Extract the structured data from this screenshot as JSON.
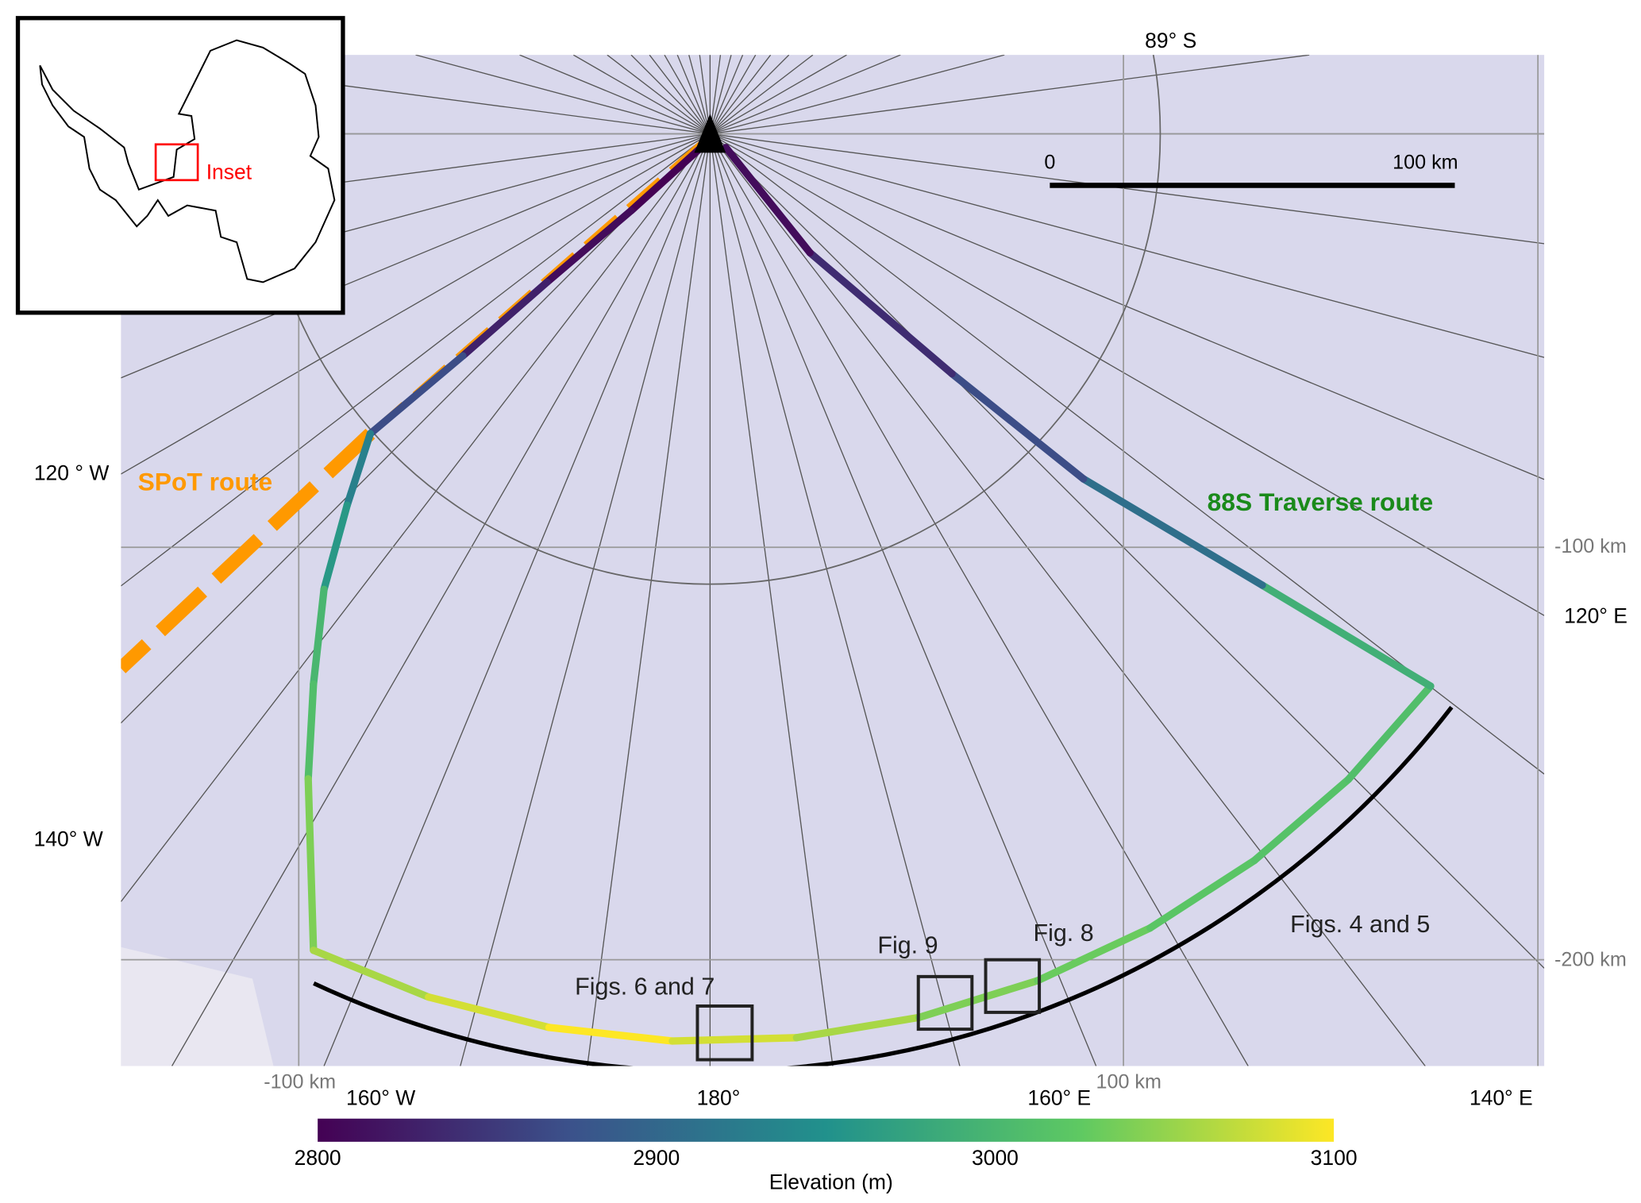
{
  "title_labels": {
    "lat_circle": "89° S",
    "lon_120w": "120 ° W",
    "lon_140w": "140° W",
    "lon_120e": "120°  E",
    "lon_160w": "160° W",
    "lon_180": "180°",
    "lon_160e": "160° E",
    "lon_140e": "140° E",
    "y_m100": "-100 km",
    "y_m200": "-200 km",
    "x_m100": "-100 km",
    "x_100": "100 km"
  },
  "scale_bar": {
    "start": "0",
    "end": "100 km"
  },
  "routes": {
    "spot_label": "SPoT route",
    "spot_color": "#ff9900",
    "traverse_label": "88S Traverse route",
    "traverse_color": "#1a8a1a",
    "traverse_elevations_m": [
      2800,
      2810,
      2830,
      2870,
      2900,
      2930,
      2960,
      3000,
      3010,
      3040,
      3060,
      3080,
      3100,
      3100,
      3080,
      3060,
      3040,
      3030,
      3020,
      3015,
      3010,
      2990,
      2950,
      2910,
      2870,
      2840,
      2810
    ]
  },
  "figure_boxes": {
    "figs67": "Figs. 6 and 7",
    "fig9": "Fig. 9",
    "fig8": "Fig. 8",
    "figs45": "Figs. 4 and 5"
  },
  "inset": {
    "label": "Inset",
    "color": "#ff0000"
  },
  "colorbar": {
    "label": "Elevation (m)",
    "ticks": [
      "2800",
      "2900",
      "3000",
      "3100"
    ],
    "min": 2800,
    "max": 3100,
    "colors": [
      "#440154",
      "#3b528b",
      "#21918c",
      "#5ec962",
      "#fde725"
    ]
  }
}
